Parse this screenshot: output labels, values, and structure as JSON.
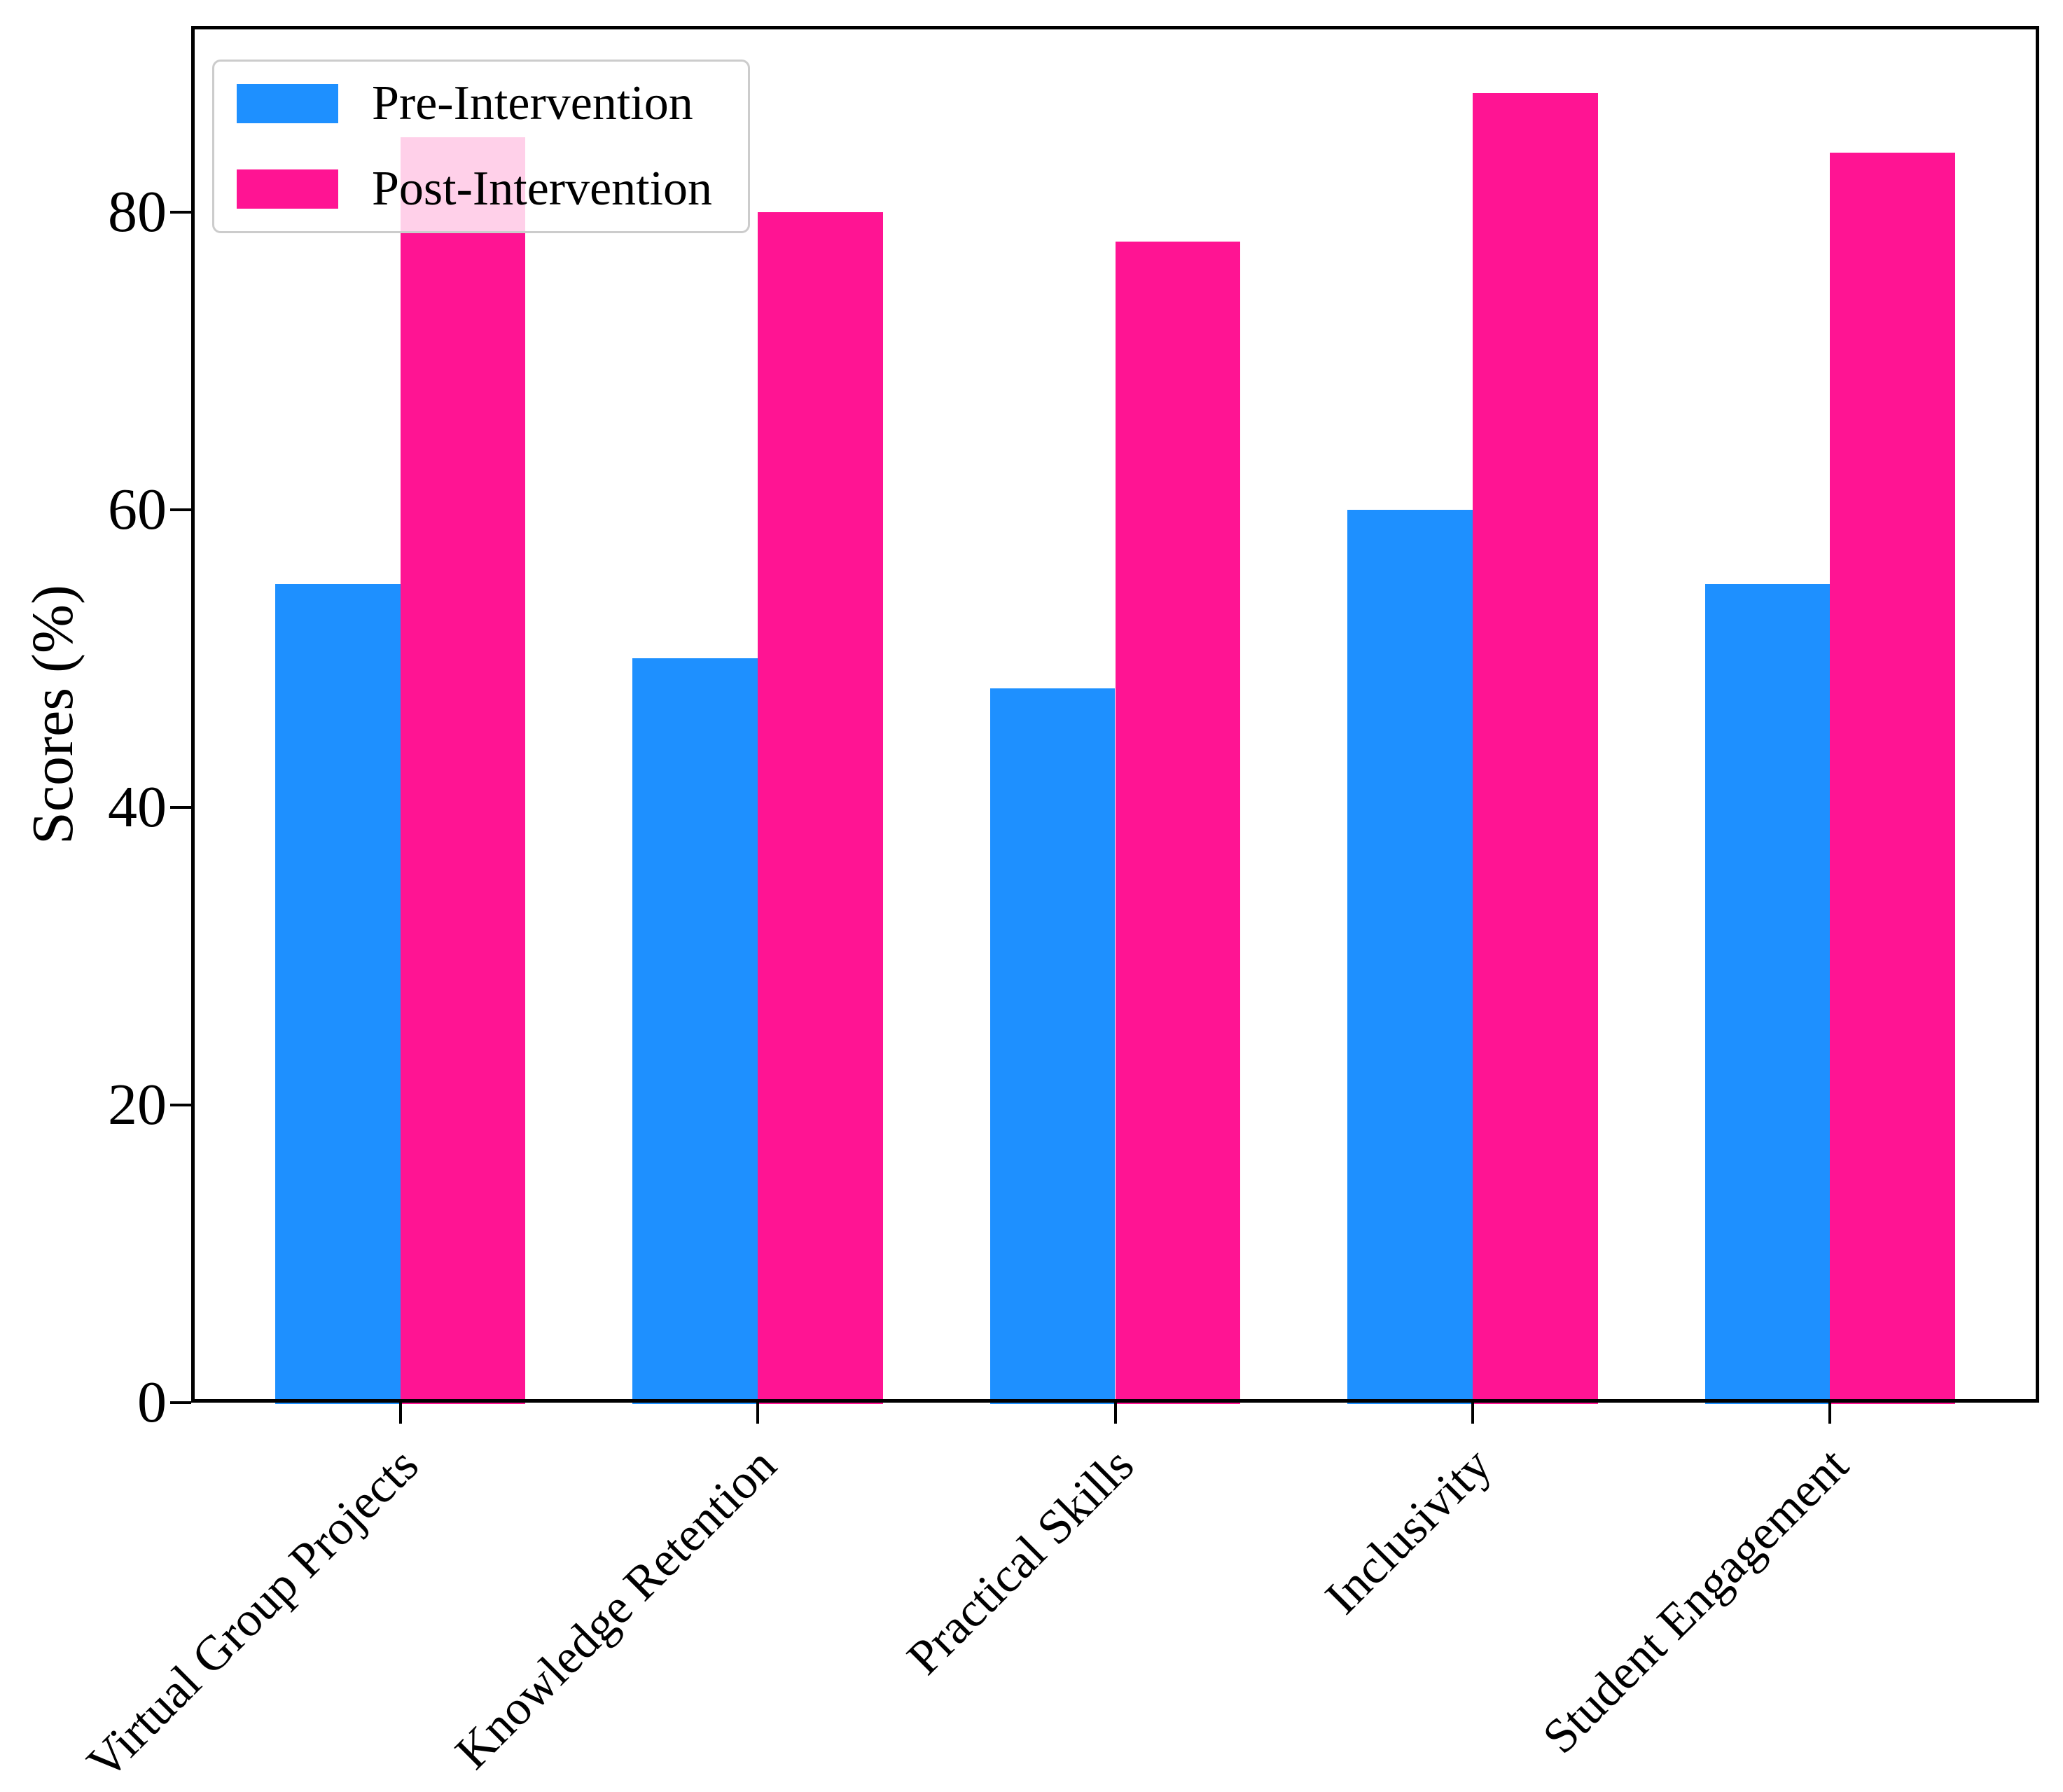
{
  "chart_data": {
    "type": "bar",
    "categories": [
      "Virtual Group Projects",
      "Knowledge Retention",
      "Practical Skills",
      "Inclusivity",
      "Student Engagement"
    ],
    "series": [
      {
        "name": "Pre-Intervention",
        "color": "#1E90FF",
        "values": [
          55,
          50,
          48,
          60,
          55
        ]
      },
      {
        "name": "Post-Intervention",
        "color": "#FF1493",
        "values": [
          85,
          80,
          78,
          88,
          84
        ]
      }
    ],
    "title": "",
    "xlabel": "",
    "ylabel": "Scores (%)",
    "yticks": [
      0,
      20,
      40,
      60,
      80
    ],
    "ylim": [
      0,
      92.5
    ],
    "bar_width": 0.35,
    "grid": false,
    "legend_position": "upper left",
    "frame_color": "#000000",
    "legend_border_color": "#cccccc"
  }
}
